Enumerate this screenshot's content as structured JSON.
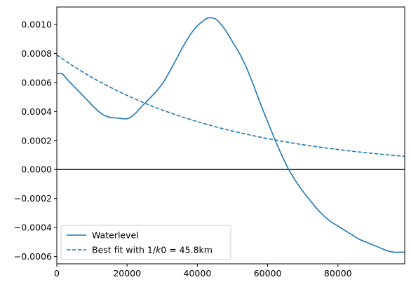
{
  "chart_data": {
    "type": "line",
    "title": "",
    "xlabel": "",
    "ylabel": "",
    "xlim": [
      0,
      99000
    ],
    "ylim": [
      -0.00065,
      0.00112
    ],
    "xticks": [
      0,
      20000,
      40000,
      60000,
      80000
    ],
    "xtick_labels": [
      "0",
      "20000",
      "40000",
      "60000",
      "80000"
    ],
    "yticks": [
      -0.0006,
      -0.0004,
      -0.0002,
      0.0,
      0.0002,
      0.0004,
      0.0006,
      0.0008,
      0.001
    ],
    "ytick_labels": [
      "−0.0006",
      "−0.0004",
      "−0.0002",
      "0.0000",
      "0.0002",
      "0.0004",
      "0.0006",
      "0.0008",
      "0.0010"
    ],
    "grid": false,
    "legend_position": "lower-left",
    "zero_line": 0.0,
    "series": [
      {
        "name": "Waterlevel",
        "style": "solid",
        "color": "#1f77b4",
        "x": [
          0,
          1500,
          3000,
          5000,
          7000,
          9000,
          11000,
          13000,
          15000,
          17000,
          19000,
          20000,
          21000,
          22500,
          24000,
          26000,
          28000,
          30000,
          32000,
          34000,
          36000,
          38000,
          40000,
          42000,
          43000,
          44000,
          45000,
          46000,
          48000,
          50000,
          52000,
          54000,
          56000,
          58000,
          60000,
          62000,
          64000,
          66000,
          68000,
          70000,
          72000,
          74000,
          76000,
          78000,
          80000,
          82000,
          84000,
          86000,
          88000,
          90000,
          92000,
          94000,
          96000,
          98000,
          99000
        ],
        "y": [
          0.00066,
          0.00066,
          0.00062,
          0.00057,
          0.00052,
          0.00047,
          0.00042,
          0.00038,
          0.00036,
          0.000355,
          0.00035,
          0.00035,
          0.00036,
          0.00039,
          0.00043,
          0.00048,
          0.00053,
          0.00059,
          0.00067,
          0.00076,
          0.00085,
          0.00093,
          0.00099,
          0.00103,
          0.001045,
          0.001045,
          0.00104,
          0.00102,
          0.00096,
          0.00088,
          0.0008,
          0.0007,
          0.00058,
          0.00045,
          0.00033,
          0.00021,
          0.0001,
          0.0,
          -8e-05,
          -0.00015,
          -0.00021,
          -0.00027,
          -0.00032,
          -0.00036,
          -0.00039,
          -0.00042,
          -0.00045,
          -0.00048,
          -0.0005,
          -0.00052,
          -0.00054,
          -0.00056,
          -0.00057,
          -0.00057,
          -0.00057
        ]
      },
      {
        "name": "Best fit with 1/k0 = 45.8km",
        "style": "dashed",
        "color": "#1f77b4",
        "model": "exponential",
        "amplitude": 0.00079,
        "length_scale": 45800
      }
    ]
  },
  "legend": {
    "entries": [
      {
        "label": "Waterlevel",
        "style": "solid"
      },
      {
        "label_prefix": "Best fit with 1/",
        "label_var": "k",
        "label_num": "0",
        "label_suffix": " = 45.8km",
        "style": "dashed"
      }
    ]
  }
}
